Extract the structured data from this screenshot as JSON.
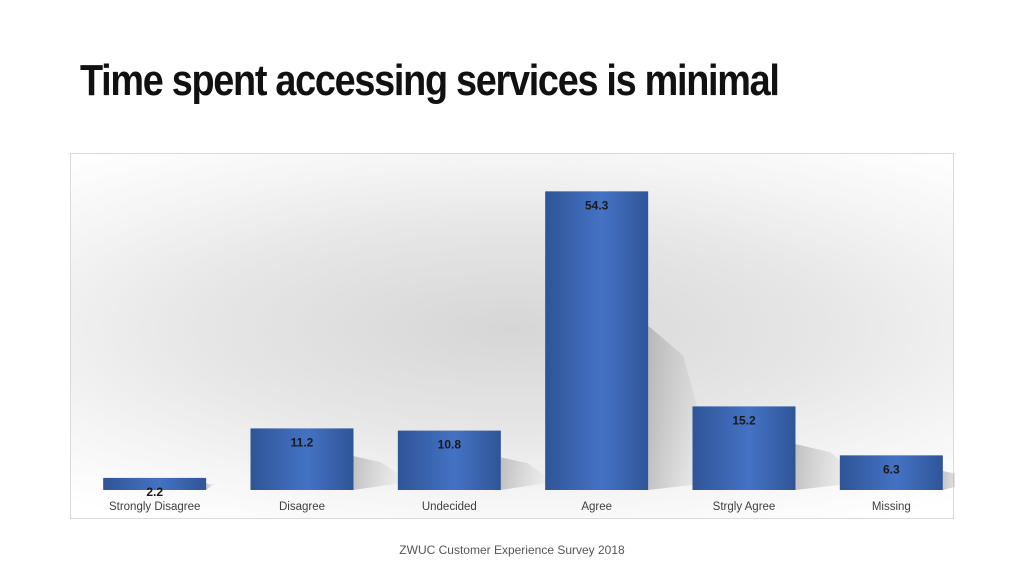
{
  "slide": {
    "title": "Time spent accessing services is minimal",
    "footer": "ZWUC Customer Experience Survey 2018"
  },
  "colors": {
    "bar": "#4472c4",
    "bar_dark": "#2f5597",
    "label": "#1a1a1a",
    "tick": "#404040"
  },
  "chart_data": {
    "type": "bar",
    "categories": [
      "Strongly Disagree",
      "Disagree",
      "Undecided",
      "Agree",
      "Strgly Agree",
      "Missing"
    ],
    "values": [
      2.2,
      11.2,
      10.8,
      54.3,
      15.2,
      6.3
    ],
    "data_labels": [
      "2.2",
      "11.2",
      "10.8",
      "54.3",
      "15.2",
      "6.3"
    ],
    "ylim": [
      0,
      60
    ],
    "grid": false,
    "legend": "none"
  }
}
